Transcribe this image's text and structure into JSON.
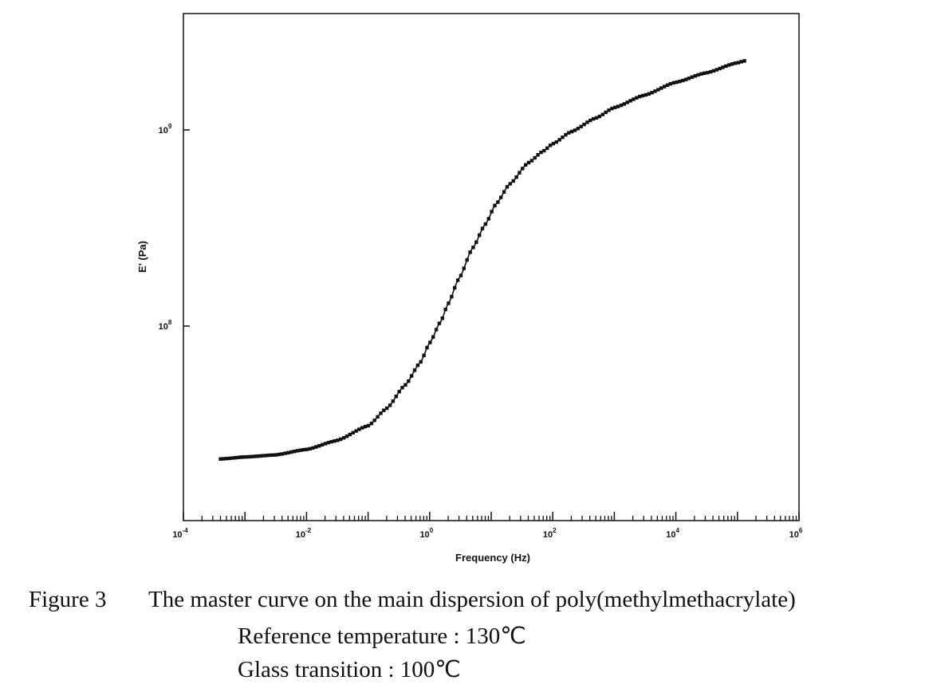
{
  "chart_data": {
    "type": "scatter",
    "title": "",
    "xlabel": "Frequency (Hz)",
    "ylabel": "E' (Pa)",
    "x_scale": "log",
    "y_scale": "log",
    "xlim": [
      0.0001,
      1000000
    ],
    "ylim": [
      1.2e-09,
      6.5e-10
    ],
    "x_tick_labels": [
      {
        "base": "10",
        "exp": "-4",
        "value": 0.0001
      },
      {
        "base": "10",
        "exp": "-2",
        "value": 0.01
      },
      {
        "base": "10",
        "exp": "0",
        "value": 1
      },
      {
        "base": "10",
        "exp": "2",
        "value": 100
      },
      {
        "base": "10",
        "exp": "4",
        "value": 10000
      },
      {
        "base": "10",
        "exp": "6",
        "value": 1000000
      }
    ],
    "y_tick_labels": [
      {
        "base": "10",
        "exp": "9",
        "value": 1000000000
      },
      {
        "base": "10",
        "exp": "8",
        "value": 100000000
      }
    ],
    "grid": false,
    "series": [
      {
        "marker": "square",
        "line": "smooth fit",
        "x": [
          0.0004,
          0.001,
          0.003,
          0.01,
          0.03,
          0.1,
          0.2,
          0.4,
          0.7,
          1,
          1.5,
          2,
          3,
          5,
          8,
          12,
          20,
          40,
          70,
          100,
          200,
          500,
          1000,
          3000,
          10000,
          30000,
          100000,
          130000
        ],
        "y": [
          21000000,
          21500000,
          22000000,
          23500000,
          26000000,
          31000000,
          38000000,
          50000000,
          65000000,
          82000000,
          105000000,
          130000000,
          175000000,
          250000000,
          330000000,
          420000000,
          530000000,
          680000000,
          780000000,
          850000000,
          980000000,
          1150000000,
          1300000000,
          1500000000,
          1750000000,
          1950000000,
          2200000000,
          2250000000
        ]
      }
    ]
  },
  "caption": {
    "label": "Figure 3",
    "title": "The master curve on the main dispersion of poly(methylmethacrylate)",
    "reference": "Reference temperature : 130℃",
    "glass_transition": "Glass transition : 100℃"
  }
}
